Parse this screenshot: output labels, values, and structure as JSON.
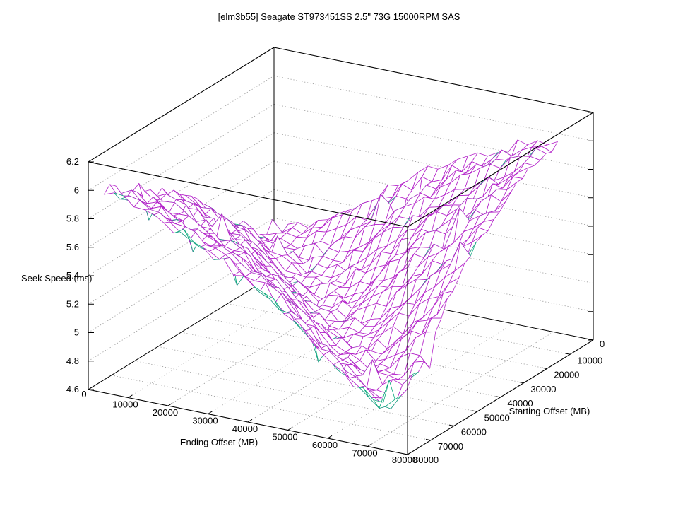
{
  "page": {
    "background": "#ffffff"
  },
  "chart_data": {
    "type": "surface3d-wireframe",
    "title": "[elm3b55] Seagate ST973451SS 2.5\" 73G 15000RPM SAS",
    "xlabel": "Ending Offset (MB)",
    "ylabel": "Starting Offset (MB)",
    "zlabel": "Seek Speed (ms)",
    "xlim": [
      0,
      80000
    ],
    "ylim": [
      0,
      80000
    ],
    "zlim": [
      4.6,
      6.2
    ],
    "x_ticks": [
      0,
      10000,
      20000,
      30000,
      40000,
      50000,
      60000,
      70000,
      80000
    ],
    "y_ticks": [
      0,
      10000,
      20000,
      30000,
      40000,
      50000,
      60000,
      70000,
      80000
    ],
    "z_ticks": [
      4.6,
      4.8,
      5.0,
      5.2,
      5.4,
      5.6,
      5.8,
      6.0,
      6.2
    ],
    "z_tick_labels": [
      "4.6",
      "4.8",
      "5",
      "5.2",
      "5.4",
      "5.6",
      "5.8",
      "6",
      "6.2"
    ],
    "grid": true,
    "legend": "none",
    "surface": {
      "x_start": 2500,
      "x_step": 2500,
      "nx": 29,
      "y_start": 2500,
      "y_step": 2500,
      "ny": 31,
      "control_x": [
        0,
        10000,
        20000,
        30000,
        40000,
        50000,
        60000,
        70000,
        80000
      ],
      "control_y": [
        0,
        10000,
        20000,
        30000,
        40000,
        50000,
        60000,
        70000,
        80000
      ],
      "control_z": [
        [
          5.08,
          5.0,
          5.26,
          5.46,
          5.62,
          5.76,
          5.89,
          5.99,
          6.02
        ],
        [
          5.0,
          4.97,
          5.04,
          5.26,
          5.46,
          5.62,
          5.79,
          5.92,
          6.0
        ],
        [
          5.24,
          5.02,
          4.95,
          5.02,
          5.26,
          5.47,
          5.64,
          5.82,
          5.94
        ],
        [
          5.44,
          5.24,
          5.0,
          4.93,
          5.0,
          5.26,
          5.47,
          5.67,
          5.84
        ],
        [
          5.59,
          5.44,
          5.24,
          4.98,
          4.91,
          5.0,
          5.26,
          5.49,
          5.69
        ],
        [
          5.73,
          5.59,
          5.44,
          5.24,
          4.96,
          4.87,
          4.97,
          5.27,
          5.51
        ],
        [
          5.85,
          5.73,
          5.59,
          5.44,
          5.21,
          4.93,
          4.83,
          4.96,
          5.27
        ],
        [
          5.96,
          5.85,
          5.73,
          5.59,
          5.44,
          5.19,
          4.91,
          4.79,
          4.99
        ],
        [
          6.05,
          5.96,
          5.86,
          5.73,
          5.57,
          5.41,
          5.19,
          4.93,
          4.93
        ]
      ],
      "noise_amp": 0.045,
      "spike_up": 0.1,
      "spike_down": 0.13
    },
    "colors": {
      "mesh": "#b322c9",
      "underside": "#0faa7e",
      "grid": "#9e9e9e",
      "border": "#000000",
      "text": "#000000"
    }
  }
}
